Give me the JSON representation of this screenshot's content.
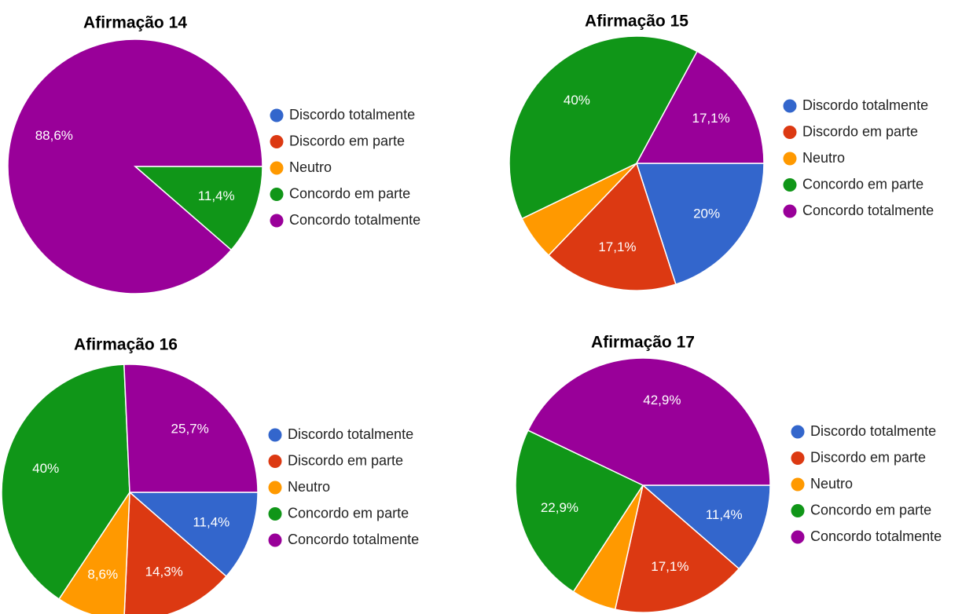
{
  "chart_data": [
    {
      "type": "pie",
      "title": "Afirmação 14",
      "categories": [
        "Discordo totalmente",
        "Discordo em parte",
        "Neutro",
        "Concordo em parte",
        "Concordo totalmente"
      ],
      "colors": [
        "#3366cc",
        "#dc3912",
        "#ff9900",
        "#109618",
        "#990099"
      ],
      "values": [
        0,
        0,
        0,
        11.4,
        88.6
      ],
      "value_labels": [
        null,
        null,
        null,
        "11,4%",
        "88,6%"
      ],
      "legend": "right"
    },
    {
      "type": "pie",
      "title": "Afirmação 15",
      "categories": [
        "Discordo totalmente",
        "Discordo em parte",
        "Neutro",
        "Concordo em parte",
        "Concordo totalmente"
      ],
      "colors": [
        "#3366cc",
        "#dc3912",
        "#ff9900",
        "#109618",
        "#990099"
      ],
      "values": [
        20,
        17.1,
        5.7,
        40,
        17.1
      ],
      "value_labels": [
        "20%",
        "17,1%",
        null,
        "40%",
        "17,1%"
      ],
      "legend": "right"
    },
    {
      "type": "pie",
      "title": "Afirmação 16",
      "categories": [
        "Discordo totalmente",
        "Discordo em parte",
        "Neutro",
        "Concordo em parte",
        "Concordo totalmente"
      ],
      "colors": [
        "#3366cc",
        "#dc3912",
        "#ff9900",
        "#109618",
        "#990099"
      ],
      "values": [
        11.4,
        14.3,
        8.6,
        40,
        25.7
      ],
      "value_labels": [
        "11,4%",
        "14,3%",
        "8,6%",
        "40%",
        "25,7%"
      ],
      "legend": "right"
    },
    {
      "type": "pie",
      "title": "Afirmação 17",
      "categories": [
        "Discordo totalmente",
        "Discordo em parte",
        "Neutro",
        "Concordo em parte",
        "Concordo totalmente"
      ],
      "colors": [
        "#3366cc",
        "#dc3912",
        "#ff9900",
        "#109618",
        "#990099"
      ],
      "values": [
        11.4,
        17.1,
        5.7,
        22.9,
        42.9
      ],
      "value_labels": [
        "11,4%",
        "17,1%",
        null,
        "22,9%",
        "42,9%"
      ],
      "legend": "right"
    }
  ]
}
